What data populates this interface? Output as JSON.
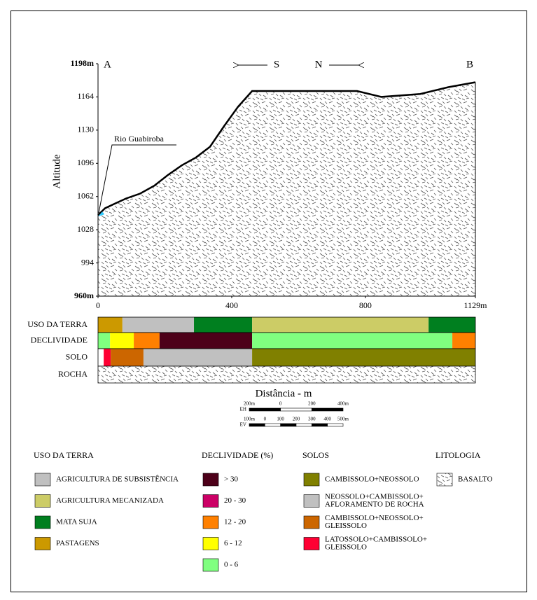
{
  "chart_data": {
    "type": "area",
    "ylabel": "Altitude",
    "xlabel": "Distância - m",
    "x": [
      0,
      21,
      52,
      84,
      126,
      168,
      209,
      251,
      293,
      335,
      377,
      419,
      461,
      503,
      775,
      848,
      964,
      1048,
      1129
    ],
    "values": [
      1043,
      1050,
      1055,
      1060,
      1065,
      1073,
      1084,
      1094,
      1102,
      1113,
      1134,
      1154,
      1170,
      1170,
      1170,
      1164,
      1167,
      1174,
      1179
    ],
    "xlim": [
      0,
      1129
    ],
    "ylim": [
      960,
      1198
    ],
    "xticks": [
      0,
      400,
      800,
      {
        "value": 1129,
        "label": "1129m"
      }
    ],
    "yticks": [
      {
        "value": 960,
        "label": "960m"
      },
      994,
      1028,
      1062,
      1096,
      1130,
      1164,
      {
        "value": 1198,
        "label": "1198m"
      }
    ],
    "grid": false,
    "annotations": [
      "A",
      "B",
      "S",
      "N",
      "Rio Guabiroba"
    ]
  },
  "profile_bands": [
    {
      "label": "USO DA TERRA",
      "segments": [
        {
          "from": 0,
          "to": 73,
          "color": "#cc9900"
        },
        {
          "from": 73,
          "to": 287,
          "color": "#c0c0c0"
        },
        {
          "from": 287,
          "to": 461,
          "color": "#007f1f"
        },
        {
          "from": 461,
          "to": 989,
          "color": "#cccc66"
        },
        {
          "from": 989,
          "to": 1129,
          "color": "#007f1f"
        }
      ]
    },
    {
      "label": "DECLIVIDADE",
      "segments": [
        {
          "from": 0,
          "to": 36,
          "color": "#80ff80"
        },
        {
          "from": 36,
          "to": 107,
          "color": "#ffff00"
        },
        {
          "from": 107,
          "to": 184,
          "color": "#ff8000"
        },
        {
          "from": 184,
          "to": 461,
          "color": "#4d0019"
        },
        {
          "from": 461,
          "to": 1060,
          "color": "#80ff80"
        },
        {
          "from": 1060,
          "to": 1129,
          "color": "#ff8000"
        }
      ]
    },
    {
      "label": "SOLO",
      "segments": [
        {
          "from": 17,
          "to": 38,
          "color": "#ff0033"
        },
        {
          "from": 38,
          "to": 136,
          "color": "#cc6600"
        },
        {
          "from": 136,
          "to": 461,
          "color": "#c0c0c0"
        },
        {
          "from": 461,
          "to": 1129,
          "color": "#808000"
        }
      ]
    },
    {
      "label": "ROCHA",
      "segments": [
        {
          "from": 0,
          "to": 1129
        }
      ]
    }
  ],
  "scale_bars": [
    {
      "label": "EH",
      "ticks": [
        "200m",
        "0",
        "200",
        "400m"
      ]
    },
    {
      "label": "EV",
      "ticks": [
        "100m",
        "0",
        "100",
        "200",
        "300",
        "400",
        "500m"
      ]
    }
  ],
  "legend": [
    {
      "title": "USO DA TERRA",
      "items": [
        {
          "label": [
            "AGRICULTURA DE SUBSISTÊNCIA"
          ],
          "color": "#c0c0c0"
        },
        {
          "label": [
            "AGRICULTURA MECANIZADA"
          ],
          "color": "#cccc66"
        },
        {
          "label": [
            "MATA SUJA"
          ],
          "color": "#007f1f"
        },
        {
          "label": [
            "PASTAGENS"
          ],
          "color": "#cc9900"
        }
      ]
    },
    {
      "title": "DECLIVIDADE (%)",
      "items": [
        {
          "label": [
            "> 30"
          ],
          "color": "#4d0019"
        },
        {
          "label": [
            "20 - 30"
          ],
          "color": "#cc0066"
        },
        {
          "label": [
            "12 - 20"
          ],
          "color": "#ff8000"
        },
        {
          "label": [
            "6 - 12"
          ],
          "color": "#ffff00"
        },
        {
          "label": [
            "0 - 6"
          ],
          "color": "#80ff80"
        }
      ]
    },
    {
      "title": "SOLOS",
      "items": [
        {
          "label": [
            "CAMBISSOLO+NEOSSOLO"
          ],
          "color": "#808000"
        },
        {
          "label": [
            "NEOSSOLO+CAMBISSOLO+",
            "AFLORAMENTO DE ROCHA"
          ],
          "color": "#c0c0c0"
        },
        {
          "label": [
            "CAMBISSOLO+NEOSSOLO+",
            "GLEISSOLO"
          ],
          "color": "#cc6600"
        },
        {
          "label": [
            "LATOSSOLO+CAMBISSOLO+",
            "GLEISSOLO"
          ],
          "color": "#ff0033"
        }
      ]
    },
    {
      "title": "LITOLOGIA",
      "items": [
        {
          "label": [
            "BASALTO"
          ]
        }
      ]
    }
  ]
}
